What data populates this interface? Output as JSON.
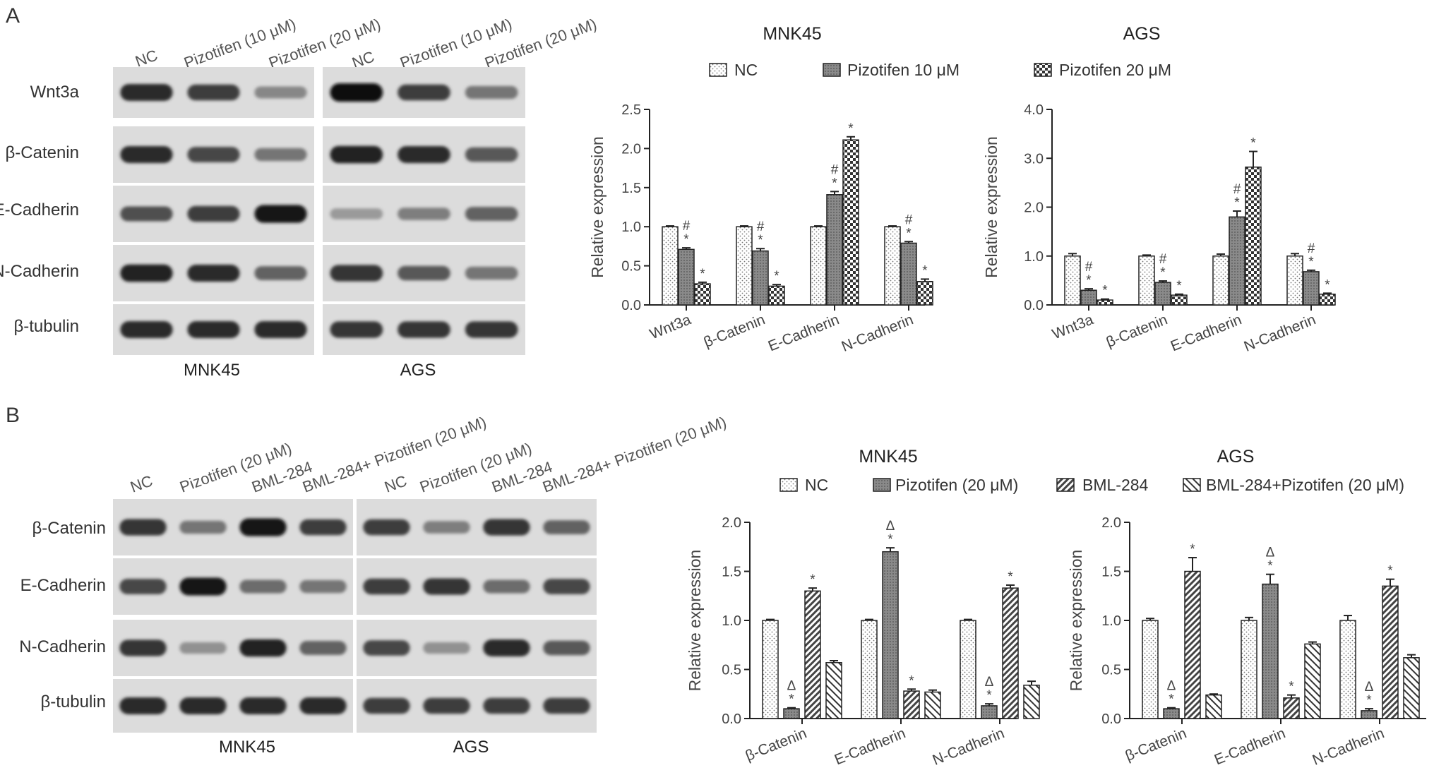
{
  "panels": [
    {
      "letter": "A",
      "blots": {
        "rows": [
          "Wnt3a",
          "β-Catenin",
          "E-Cadherin",
          "N-Cadherin",
          "β-tubulin"
        ],
        "groups": [
          {
            "cell_line": "MNK45",
            "lanes": [
              "NC",
              "Pizotifen (10 μM)",
              "Pizotifen (20 μM)"
            ],
            "intensities": [
              [
                0.85,
                0.75,
                0.35
              ],
              [
                0.85,
                0.7,
                0.45
              ],
              [
                0.65,
                0.75,
                0.95
              ],
              [
                0.9,
                0.85,
                0.55
              ],
              [
                0.85,
                0.85,
                0.85
              ]
            ]
          },
          {
            "cell_line": "AGS",
            "lanes": [
              "NC",
              "Pizotifen (10 μM)",
              "Pizotifen (20 μM)"
            ],
            "intensities": [
              [
                1.0,
                0.75,
                0.45
              ],
              [
                0.9,
                0.85,
                0.6
              ],
              [
                0.25,
                0.4,
                0.55
              ],
              [
                0.8,
                0.6,
                0.45
              ],
              [
                0.8,
                0.8,
                0.8
              ]
            ]
          }
        ]
      },
      "legend": [
        {
          "label": "NC",
          "pattern": "dots"
        },
        {
          "label": "Pizotifen 10 μM",
          "pattern": "grid"
        },
        {
          "label": "Pizotifen 20 μM",
          "pattern": "checker"
        }
      ]
    },
    {
      "letter": "B",
      "blots": {
        "rows": [
          "β-Catenin",
          "E-Cadherin",
          "N-Cadherin",
          "β-tubulin"
        ],
        "groups": [
          {
            "cell_line": "MNK45",
            "lanes": [
              "NC",
              "Pizotifen (20 μM)",
              "BML-284",
              "BML-284+ Pizotifen (20 μM)"
            ],
            "intensities": [
              [
                0.8,
                0.45,
                0.95,
                0.75
              ],
              [
                0.7,
                0.95,
                0.5,
                0.45
              ],
              [
                0.8,
                0.3,
                0.9,
                0.55
              ],
              [
                0.85,
                0.85,
                0.85,
                0.85
              ]
            ]
          },
          {
            "cell_line": "AGS",
            "lanes": [
              "NC",
              "Pizotifen (20 μM)",
              "BML-284",
              "BML-284+ Pizotifen (20 μM)"
            ],
            "intensities": [
              [
                0.75,
                0.4,
                0.8,
                0.55
              ],
              [
                0.75,
                0.8,
                0.5,
                0.7
              ],
              [
                0.7,
                0.3,
                0.85,
                0.6
              ],
              [
                0.75,
                0.75,
                0.75,
                0.75
              ]
            ]
          }
        ]
      },
      "legend": [
        {
          "label": "NC",
          "pattern": "dots"
        },
        {
          "label": "Pizotifen (20 μM)",
          "pattern": "grid"
        },
        {
          "label": "BML-284",
          "pattern": "diag"
        },
        {
          "label": "BML-284+Pizotifen (20 μM)",
          "pattern": "diag2"
        }
      ]
    }
  ],
  "chart_data": [
    {
      "type": "bar",
      "title": "MNK45",
      "ylabel": "Relative expression",
      "ylim": [
        0,
        2.5
      ],
      "yticks": [
        "0.0",
        "0.5",
        "1.0",
        "1.5",
        "2.0",
        "2.5"
      ],
      "categories": [
        "Wnt3a",
        "β-Catenin",
        "E-Cadherin",
        "N-Cadherin"
      ],
      "series": [
        {
          "name": "NC",
          "values": [
            1.0,
            1.0,
            1.0,
            1.0
          ],
          "errors": [
            0.01,
            0.01,
            0.01,
            0.01
          ]
        },
        {
          "name": "Pizotifen 10 μM",
          "values": [
            0.71,
            0.69,
            1.41,
            0.79
          ],
          "errors": [
            0.02,
            0.03,
            0.04,
            0.02
          ]
        },
        {
          "name": "Pizotifen 20 μM",
          "values": [
            0.27,
            0.24,
            2.11,
            0.3
          ],
          "errors": [
            0.02,
            0.02,
            0.04,
            0.03
          ]
        }
      ],
      "annotations": [
        [
          "",
          "#\n*",
          "*"
        ],
        [
          "",
          "#\n*",
          "*"
        ],
        [
          "",
          "#\n*",
          "*"
        ],
        [
          "",
          "#\n*",
          "*"
        ]
      ]
    },
    {
      "type": "bar",
      "title": "AGS",
      "ylabel": "Relative expression",
      "ylim": [
        0,
        4.0
      ],
      "yticks": [
        "0.0",
        "1.0",
        "2.0",
        "3.0",
        "4.0"
      ],
      "categories": [
        "Wnt3a",
        "β-Catenin",
        "E-Cadherin",
        "N-Cadherin"
      ],
      "series": [
        {
          "name": "NC",
          "values": [
            1.0,
            1.0,
            1.0,
            1.0
          ],
          "errors": [
            0.05,
            0.02,
            0.04,
            0.05
          ]
        },
        {
          "name": "Pizotifen 10 μM",
          "values": [
            0.3,
            0.46,
            1.8,
            0.68
          ],
          "errors": [
            0.03,
            0.03,
            0.12,
            0.03
          ]
        },
        {
          "name": "Pizotifen 20 μM",
          "values": [
            0.1,
            0.2,
            2.82,
            0.22
          ],
          "errors": [
            0.02,
            0.02,
            0.32,
            0.02
          ]
        }
      ],
      "annotations": [
        [
          "",
          "#\n*",
          "*"
        ],
        [
          "",
          "#\n*",
          "*"
        ],
        [
          "",
          "#\n*",
          "*"
        ],
        [
          "",
          "#\n*",
          "*"
        ]
      ]
    },
    {
      "type": "bar",
      "title": "MNK45",
      "ylabel": "Relative expression",
      "ylim": [
        0,
        2.0
      ],
      "yticks": [
        "0.0",
        "0.5",
        "1.0",
        "1.5",
        "2.0"
      ],
      "categories": [
        "β-Catenin",
        "E-Cadherin",
        "N-Cadherin"
      ],
      "series": [
        {
          "name": "NC",
          "values": [
            1.0,
            1.0,
            1.0
          ],
          "errors": [
            0.01,
            0.01,
            0.01
          ]
        },
        {
          "name": "Pizotifen (20 μM)",
          "values": [
            0.1,
            1.7,
            0.13
          ],
          "errors": [
            0.01,
            0.04,
            0.02
          ]
        },
        {
          "name": "BML-284",
          "values": [
            1.3,
            0.28,
            1.33
          ],
          "errors": [
            0.03,
            0.02,
            0.03
          ]
        },
        {
          "name": "BML-284+Pizotifen (20 μM)",
          "values": [
            0.57,
            0.27,
            0.34
          ],
          "errors": [
            0.02,
            0.02,
            0.04
          ]
        }
      ],
      "annotations": [
        [
          "",
          "Δ\n*",
          "*",
          ""
        ],
        [
          "",
          "Δ\n*",
          "*",
          ""
        ],
        [
          "",
          "Δ\n*",
          "*",
          ""
        ]
      ]
    },
    {
      "type": "bar",
      "title": "AGS",
      "ylabel": "Relative expression",
      "ylim": [
        0,
        2.0
      ],
      "yticks": [
        "0.0",
        "0.5",
        "1.0",
        "1.5",
        "2.0"
      ],
      "categories": [
        "β-Catenin",
        "E-Cadherin",
        "N-Cadherin"
      ],
      "series": [
        {
          "name": "NC",
          "values": [
            1.0,
            1.0,
            1.0
          ],
          "errors": [
            0.02,
            0.03,
            0.05
          ]
        },
        {
          "name": "Pizotifen (20 μM)",
          "values": [
            0.1,
            1.37,
            0.08
          ],
          "errors": [
            0.01,
            0.1,
            0.02
          ]
        },
        {
          "name": "BML-284",
          "values": [
            1.5,
            0.21,
            1.35
          ],
          "errors": [
            0.14,
            0.03,
            0.07
          ]
        },
        {
          "name": "BML-284+Pizotifen (20 μM)",
          "values": [
            0.24,
            0.76,
            0.62
          ],
          "errors": [
            0.01,
            0.02,
            0.03
          ]
        }
      ],
      "annotations": [
        [
          "",
          "Δ\n*",
          "*",
          ""
        ],
        [
          "",
          "Δ\n*",
          "*",
          ""
        ],
        [
          "",
          "Δ\n*",
          "*",
          ""
        ]
      ]
    }
  ]
}
